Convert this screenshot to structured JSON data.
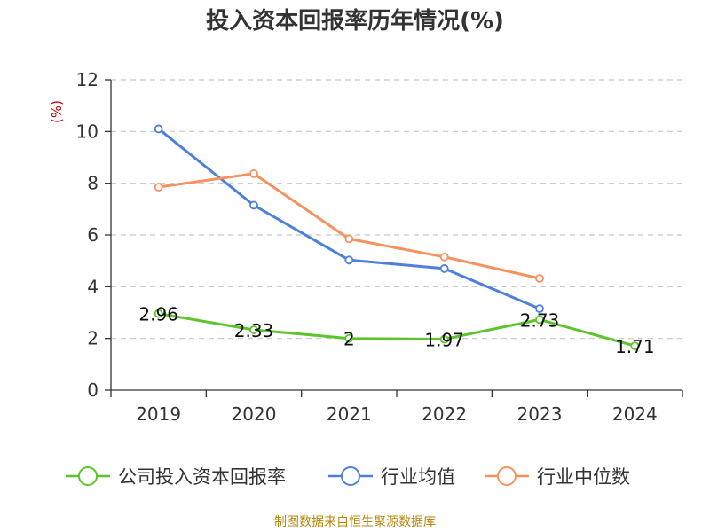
{
  "title": "投入资本回报率历年情况(%)",
  "source": "制图数据来自恒生聚源数据库",
  "colors": {
    "company": "#5ec42b",
    "industry_avg": "#4f7fdc",
    "industry_median": "#f5925f",
    "grid": "#c8c8c8",
    "axis": "#333333",
    "unit": "#cc0000"
  },
  "chart_data": {
    "type": "line",
    "title": "投入资本回报率历年情况(%)",
    "ylabel": "(%)",
    "xlabel": "",
    "categories": [
      "2019",
      "2020",
      "2021",
      "2022",
      "2023",
      "2024"
    ],
    "ylim": [
      0,
      12
    ],
    "yticks": [
      0,
      2,
      4,
      6,
      8,
      10,
      12
    ],
    "grid": true,
    "legend_position": "bottom",
    "series": [
      {
        "name": "公司投入资本回报率",
        "color_key": "company",
        "values": [
          2.96,
          2.33,
          2,
          1.97,
          2.73,
          1.71
        ],
        "labels": [
          "2.96",
          "2.33",
          "2",
          "1.97",
          "2.73",
          "1.71"
        ],
        "show_labels": true
      },
      {
        "name": "行业均值",
        "color_key": "industry_avg",
        "values": [
          10.1,
          7.15,
          5.03,
          4.7,
          3.15,
          null
        ],
        "show_labels": false
      },
      {
        "name": "行业中位数",
        "color_key": "industry_median",
        "values": [
          7.85,
          8.37,
          5.85,
          5.15,
          4.32,
          null
        ],
        "show_labels": false
      }
    ]
  }
}
